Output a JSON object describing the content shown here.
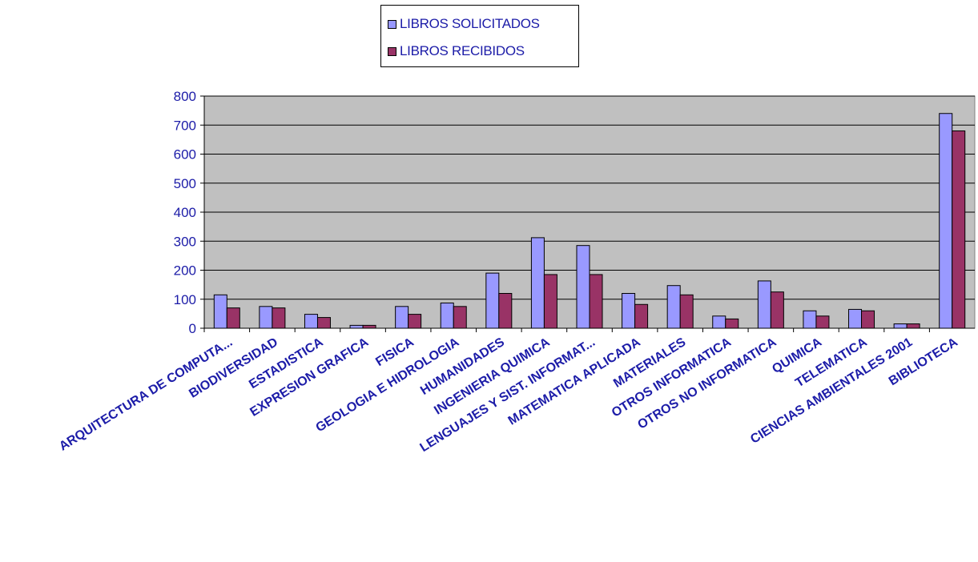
{
  "chart_data": {
    "type": "bar",
    "categories": [
      "ARQUITECTURA DE COMPUTA...",
      "BIODIVERSIDAD",
      "ESTADISTICA",
      "EXPRESION GRAFICA",
      "FISICA",
      "GEOLOGIA E HIDROLOGIA",
      "HUMANIDADES",
      "INGENIERIA QUIMICA",
      "LENGUAJES Y SIST. INFORMAT...",
      "MATEMATICA APLICADA",
      "MATERIALES",
      "OTROS INFORMATICA",
      "OTROS NO INFORMATICA",
      "QUIMICA",
      "TELEMATICA",
      "CIENCIAS AMBIENTALES 2001",
      "BIBLIOTECA"
    ],
    "series": [
      {
        "name": "LIBROS SOLICITADOS",
        "color": "#9999ff",
        "values": [
          115,
          75,
          48,
          10,
          75,
          87,
          190,
          312,
          285,
          120,
          147,
          42,
          163,
          60,
          65,
          15,
          740
        ]
      },
      {
        "name": "LIBROS RECIBIDOS",
        "color": "#993366",
        "values": [
          70,
          70,
          37,
          10,
          48,
          75,
          120,
          185,
          185,
          82,
          115,
          32,
          125,
          42,
          60,
          15,
          680
        ]
      }
    ],
    "title": "",
    "xlabel": "",
    "ylabel": "",
    "ylim": [
      0,
      800
    ],
    "yticks": [
      0,
      100,
      200,
      300,
      400,
      500,
      600,
      700,
      800
    ],
    "grid": true,
    "plot_background": "#c0c0c0",
    "legend_placement": "top-center"
  }
}
